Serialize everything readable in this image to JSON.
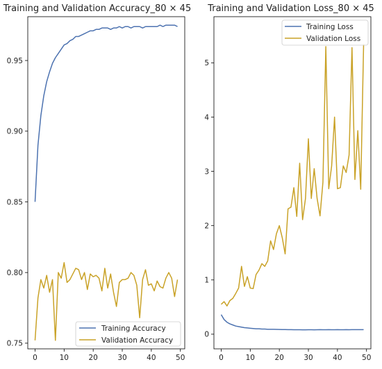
{
  "chart_data": [
    {
      "type": "line",
      "title": "Training and Validation Accuracy_80 × 45",
      "xlabel": "",
      "ylabel": "",
      "xlim": [
        -2.5,
        51.5
      ],
      "ylim": [
        0.746,
        0.981
      ],
      "xticks": [
        0,
        10,
        20,
        30,
        40,
        50
      ],
      "yticks": [
        0.75,
        0.8,
        0.85,
        0.9,
        0.95
      ],
      "xtick_labels": [
        "0",
        "10",
        "20",
        "30",
        "40",
        "50"
      ],
      "ytick_labels": [
        "0.75",
        "0.80",
        "0.85",
        "0.90",
        "0.95"
      ],
      "grid": false,
      "legend": "lower-right",
      "x": [
        0,
        1,
        2,
        3,
        4,
        5,
        6,
        7,
        8,
        9,
        10,
        11,
        12,
        13,
        14,
        15,
        16,
        17,
        18,
        19,
        20,
        21,
        22,
        23,
        24,
        25,
        26,
        27,
        28,
        29,
        30,
        31,
        32,
        33,
        34,
        35,
        36,
        37,
        38,
        39,
        40,
        41,
        42,
        43,
        44,
        45,
        46,
        47,
        48,
        49
      ],
      "series": [
        {
          "name": "Training Accuracy",
          "color": "#4c72b0",
          "values": [
            0.85,
            0.89,
            0.911,
            0.925,
            0.935,
            0.942,
            0.948,
            0.952,
            0.955,
            0.958,
            0.961,
            0.962,
            0.964,
            0.965,
            0.967,
            0.967,
            0.968,
            0.969,
            0.97,
            0.971,
            0.971,
            0.972,
            0.972,
            0.973,
            0.973,
            0.973,
            0.972,
            0.973,
            0.973,
            0.974,
            0.973,
            0.974,
            0.974,
            0.973,
            0.974,
            0.974,
            0.974,
            0.973,
            0.974,
            0.974,
            0.974,
            0.974,
            0.974,
            0.975,
            0.974,
            0.975,
            0.975,
            0.975,
            0.975,
            0.974
          ]
        },
        {
          "name": "Validation Accuracy",
          "color": "#c9a227",
          "values": [
            0.752,
            0.782,
            0.795,
            0.789,
            0.798,
            0.786,
            0.795,
            0.752,
            0.8,
            0.796,
            0.807,
            0.793,
            0.795,
            0.799,
            0.803,
            0.802,
            0.795,
            0.8,
            0.788,
            0.799,
            0.797,
            0.798,
            0.796,
            0.787,
            0.803,
            0.789,
            0.799,
            0.786,
            0.776,
            0.793,
            0.795,
            0.795,
            0.796,
            0.8,
            0.798,
            0.791,
            0.768,
            0.795,
            0.802,
            0.791,
            0.792,
            0.787,
            0.794,
            0.79,
            0.789,
            0.796,
            0.8,
            0.796,
            0.783,
            0.795
          ]
        }
      ]
    },
    {
      "type": "line",
      "title": "Training and Validation Loss_80 × 45",
      "xlabel": "",
      "ylabel": "",
      "xlim": [
        -2.5,
        51.5
      ],
      "ylim": [
        -0.27,
        5.85
      ],
      "xticks": [
        0,
        10,
        20,
        30,
        40,
        50
      ],
      "yticks": [
        0,
        1,
        2,
        3,
        4,
        5
      ],
      "xtick_labels": [
        "0",
        "10",
        "20",
        "30",
        "40",
        "50"
      ],
      "ytick_labels": [
        "0",
        "1",
        "2",
        "3",
        "4",
        "5"
      ],
      "grid": false,
      "legend": "upper-right",
      "x": [
        0,
        1,
        2,
        3,
        4,
        5,
        6,
        7,
        8,
        9,
        10,
        11,
        12,
        13,
        14,
        15,
        16,
        17,
        18,
        19,
        20,
        21,
        22,
        23,
        24,
        25,
        26,
        27,
        28,
        29,
        30,
        31,
        32,
        33,
        34,
        35,
        36,
        37,
        38,
        39,
        40,
        41,
        42,
        43,
        44,
        45,
        46,
        47,
        48,
        49
      ],
      "series": [
        {
          "name": "Training Loss",
          "color": "#4c72b0",
          "values": [
            0.36,
            0.27,
            0.22,
            0.19,
            0.17,
            0.15,
            0.14,
            0.13,
            0.12,
            0.115,
            0.11,
            0.105,
            0.1,
            0.1,
            0.095,
            0.095,
            0.09,
            0.09,
            0.09,
            0.088,
            0.087,
            0.085,
            0.085,
            0.083,
            0.083,
            0.082,
            0.082,
            0.082,
            0.081,
            0.081,
            0.082,
            0.082,
            0.081,
            0.082,
            0.083,
            0.082,
            0.082,
            0.083,
            0.082,
            0.082,
            0.083,
            0.082,
            0.082,
            0.083,
            0.082,
            0.083,
            0.083,
            0.083,
            0.083,
            0.084
          ]
        },
        {
          "name": "Validation Loss",
          "color": "#c9a227",
          "values": [
            0.55,
            0.6,
            0.52,
            0.62,
            0.66,
            0.75,
            0.85,
            1.25,
            0.88,
            1.06,
            0.85,
            0.84,
            1.1,
            1.18,
            1.3,
            1.25,
            1.35,
            1.72,
            1.56,
            1.85,
            2.0,
            1.78,
            1.48,
            2.31,
            2.34,
            2.7,
            2.17,
            3.15,
            2.11,
            2.5,
            3.6,
            2.5,
            3.05,
            2.5,
            2.18,
            2.8,
            5.3,
            2.68,
            3.1,
            4.0,
            2.68,
            2.7,
            3.1,
            2.98,
            3.3,
            5.28,
            2.85,
            3.75,
            2.67,
            5.35
          ]
        }
      ]
    }
  ]
}
